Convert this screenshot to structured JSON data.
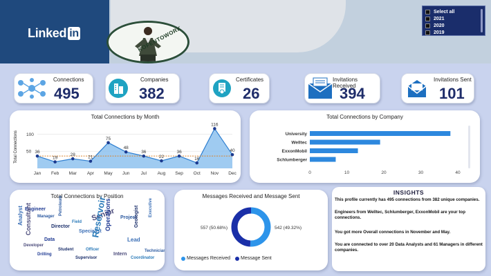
{
  "header": {
    "brand_name": "Linked",
    "brand_in": "in",
    "profile_word": "KOFENTOWORK"
  },
  "slicer": {
    "options": [
      "Select all",
      "2021",
      "2020",
      "2019"
    ]
  },
  "kpis": {
    "connections": {
      "label": "Connections",
      "value": "495"
    },
    "companies": {
      "label": "Companies",
      "value": "382"
    },
    "certificates": {
      "label": "Certificates",
      "value": "26"
    },
    "invitations_received": {
      "label": "Invitations Received",
      "value": "394"
    },
    "invitations_sent": {
      "label": "Invitations Sent",
      "value": "101"
    }
  },
  "panels": {
    "by_month_title": "Total Connections by Month",
    "by_company_title": "Total Connections by Company",
    "by_position_title": "Total Connections by Position",
    "messages_title": "Messages Received and Message Sent"
  },
  "insights": {
    "title": "INSIGHTS",
    "lines": [
      "This profile currently has 495 connections from 382 unique companies.",
      "Engineers from Welltec, Schlumberger, ExxonMobil are your top connections.",
      "You got more Overall connections in November and May.",
      "You are connected to over 20 Data Analysts and 61 Managers in different companies."
    ]
  },
  "colors": {
    "accent": "#1f2d6a",
    "area_fill": "#8ec2ee",
    "area_line": "#2f7fd0",
    "bar": "#2d88de",
    "donut_received": "#2d94ea",
    "donut_sent": "#1a2fa8",
    "brand": "#1f497d"
  },
  "chart_data": [
    {
      "type": "area",
      "title": "Total Connections by Month",
      "xlabel": "",
      "ylabel": "Total Connections",
      "categories": [
        "Jan",
        "Feb",
        "Mar",
        "Apr",
        "May",
        "Jun",
        "Jul",
        "Aug",
        "Sep",
        "Oct",
        "Nov",
        "Dec"
      ],
      "values": [
        36,
        19,
        28,
        21,
        75,
        48,
        36,
        22,
        36,
        16,
        116,
        40
      ],
      "yticks": [
        50,
        100
      ],
      "ylim": [
        0,
        125
      ],
      "reference_line": 36
    },
    {
      "type": "bar",
      "orientation": "horizontal",
      "title": "Total Connections by Company",
      "categories": [
        "University",
        "Welltec",
        "ExxonMobil",
        "Schlumberger"
      ],
      "values": [
        38,
        19,
        13,
        7
      ],
      "xticks": [
        0,
        10,
        20,
        30,
        40
      ],
      "xlim": [
        0,
        40
      ]
    },
    {
      "type": "pie",
      "title": "Messages Received and Message Sent",
      "donut": true,
      "labels": [
        "Messages Received",
        "Message Sent"
      ],
      "values": [
        557,
        542
      ],
      "data_labels": [
        "557 (50.68%)",
        "542 (49.32%)"
      ]
    }
  ],
  "word_cloud": {
    "words": [
      "Engineer",
      "Manager",
      "Analyst",
      "Director",
      "Consultant",
      "Field",
      "Data",
      "Petroleum",
      "Specialist",
      "Student",
      "Senior",
      "Reservoir",
      "Operations",
      "Project",
      "Lead",
      "Geologist",
      "Intern",
      "Officer",
      "Drilling",
      "Technician",
      "Executive",
      "Supervisor",
      "Developer",
      "Coordinator"
    ]
  }
}
